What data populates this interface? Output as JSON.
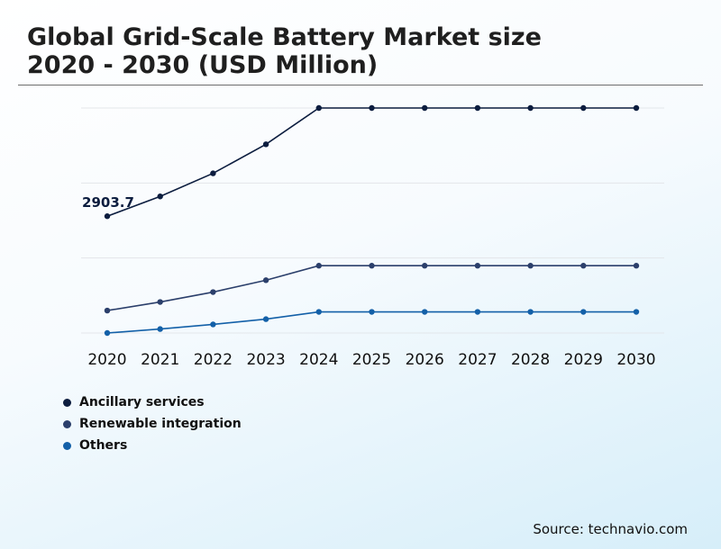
{
  "title": {
    "line1": "Global Grid-Scale Battery Market size",
    "line2": "2020 - 2030 (USD Million)"
  },
  "source": "Source: technavio.com",
  "chart_data": {
    "type": "line",
    "x": [
      "2020",
      "2021",
      "2022",
      "2023",
      "2024",
      "2025",
      "2026",
      "2027",
      "2028",
      "2029",
      "2030"
    ],
    "series": [
      {
        "name": "Ancillary services",
        "color": "#0c1d3f",
        "values": [
          2903.7,
          3203.7,
          3553.7,
          3993.7,
          4543.7,
          4543.7,
          4543.7,
          4543.7,
          4543.7,
          4543.7,
          4543.7
        ]
      },
      {
        "name": "Renewable integration",
        "color": "#2b3f6b",
        "values": [
          1473.7,
          1603.7,
          1753.7,
          1933.7,
          2153.7,
          2153.7,
          2153.7,
          2153.7,
          2153.7,
          2153.7,
          2153.7
        ]
      },
      {
        "name": "Others",
        "color": "#1360a8",
        "values": [
          1133.7,
          1193.7,
          1263.7,
          1343.7,
          1453.7,
          1453.7,
          1453.7,
          1453.7,
          1453.7,
          1453.7,
          1453.7
        ]
      }
    ],
    "data_labels": [
      {
        "series": 0,
        "index": 0,
        "text": "2903.7"
      }
    ],
    "ylim": [
      1133.7,
      4543.7
    ],
    "grid": true,
    "legend_position": "bottom-left"
  }
}
